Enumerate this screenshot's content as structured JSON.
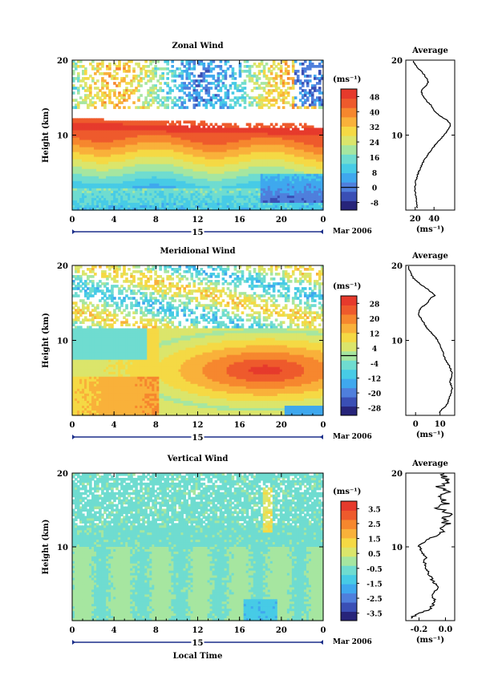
{
  "chart_data": [
    {
      "type": "heatmap",
      "title": "Zonal Wind",
      "ylabel": "Height (km)",
      "ylim": [
        0,
        20
      ],
      "yticks": [
        "10",
        "20"
      ],
      "xticks": [
        "0",
        "4",
        "8",
        "12",
        "16",
        "20",
        "0"
      ],
      "xlim": [
        0,
        24
      ],
      "colorbar": {
        "unit_label": "(ms⁻¹)",
        "ticks": [
          "-8",
          "0",
          "8",
          "16",
          "24",
          "32",
          "40",
          "48"
        ],
        "range": [
          -12,
          52
        ],
        "colors": [
          "#27247a",
          "#3a4fb5",
          "#4f7fdc",
          "#3fa8ee",
          "#47cbe6",
          "#6fdcd0",
          "#a6e6a0",
          "#dbe56b",
          "#f5d944",
          "#f9b13a",
          "#f6872e",
          "#ee5a2c",
          "#e63a2c"
        ]
      },
      "average_panel": {
        "title": "Average",
        "xticks": [
          "20",
          "40"
        ],
        "xlim": [
          10,
          62
        ],
        "ylim": [
          0,
          20
        ],
        "yticks": [
          "10",
          "20"
        ],
        "xlabel": "(ms⁻¹)",
        "profile": [
          [
            22,
            0.5
          ],
          [
            21,
            1.5
          ],
          [
            20,
            2.5
          ],
          [
            20,
            3.5
          ],
          [
            22,
            4.5
          ],
          [
            25,
            5.5
          ],
          [
            29,
            6.5
          ],
          [
            34,
            7.5
          ],
          [
            40,
            8.5
          ],
          [
            47,
            9.5
          ],
          [
            54,
            10.5
          ],
          [
            58,
            11.3
          ],
          [
            54,
            12.0
          ],
          [
            46,
            12.6
          ],
          [
            40,
            13.2
          ],
          [
            37,
            14.0
          ],
          [
            32,
            14.5
          ],
          [
            29,
            15.2
          ],
          [
            26,
            15.8
          ],
          [
            30,
            16.4
          ],
          [
            34,
            17.0
          ],
          [
            32,
            17.6
          ],
          [
            28,
            18.3
          ],
          [
            22,
            19.0
          ],
          [
            18,
            19.8
          ]
        ]
      }
    },
    {
      "type": "heatmap",
      "title": "Meridional Wind",
      "ylabel": "Height (km)",
      "ylim": [
        0,
        20
      ],
      "yticks": [
        "10",
        "20"
      ],
      "xticks": [
        "0",
        "4",
        "8",
        "12",
        "16",
        "20",
        "0"
      ],
      "xlim": [
        0,
        24
      ],
      "colorbar": {
        "unit_label": "(ms⁻¹)",
        "ticks": [
          "-28",
          "-20",
          "-12",
          "-4",
          "4",
          "12",
          "20",
          "28"
        ],
        "range": [
          -32,
          32
        ],
        "colors": [
          "#27247a",
          "#3a4fb5",
          "#4f7fdc",
          "#3fa8ee",
          "#47cbe6",
          "#6fdcd0",
          "#a6e6a0",
          "#dbe56b",
          "#f5d944",
          "#f9b13a",
          "#f6872e",
          "#ee5a2c",
          "#e63a2c"
        ]
      },
      "average_panel": {
        "title": "Average",
        "xticks": [
          "0",
          "10"
        ],
        "xlim": [
          -4,
          16
        ],
        "ylim": [
          0,
          20
        ],
        "yticks": [
          "10",
          "20"
        ],
        "xlabel": "(ms⁻¹)",
        "profile": [
          [
            10,
            0.5
          ],
          [
            13,
            1.5
          ],
          [
            14,
            2.5
          ],
          [
            15,
            3.5
          ],
          [
            14,
            4.5
          ],
          [
            15,
            5.5
          ],
          [
            14,
            6.5
          ],
          [
            12,
            7.5
          ],
          [
            11,
            8.5
          ],
          [
            10,
            9.5
          ],
          [
            8,
            10.5
          ],
          [
            5,
            11.5
          ],
          [
            3,
            12.5
          ],
          [
            1,
            13.5
          ],
          [
            2,
            14.3
          ],
          [
            5,
            15.0
          ],
          [
            6,
            15.6
          ],
          [
            8,
            16.0
          ],
          [
            5,
            16.8
          ],
          [
            2,
            17.5
          ],
          [
            -1,
            18.3
          ],
          [
            -2,
            19.0
          ],
          [
            -3,
            19.8
          ]
        ]
      }
    },
    {
      "type": "heatmap",
      "title": "Vertical Wind",
      "ylabel": "Height (km)",
      "xlabel": "Local Time",
      "ylim": [
        0,
        20
      ],
      "yticks": [
        "10",
        "20"
      ],
      "xticks": [
        "0",
        "4",
        "8",
        "12",
        "16",
        "20",
        "0"
      ],
      "xlim": [
        0,
        24
      ],
      "colorbar": {
        "unit_label": "(ms⁻¹)",
        "ticks": [
          "-3.5",
          "-2.5",
          "-1.5",
          "-0.5",
          "0.5",
          "1.5",
          "2.5",
          "3.5"
        ],
        "range": [
          -4,
          4
        ],
        "colors": [
          "#27247a",
          "#3a4fb5",
          "#4f7fdc",
          "#3fa8ee",
          "#47cbe6",
          "#6fdcd0",
          "#a6e6a0",
          "#dbe56b",
          "#f5d944",
          "#f9b13a",
          "#f6872e",
          "#ee5a2c",
          "#e63a2c"
        ]
      },
      "average_panel": {
        "title": "Average",
        "xticks": [
          "-0.2",
          "0.0"
        ],
        "xlim": [
          -0.3,
          0.07
        ],
        "ylim": [
          0,
          20
        ],
        "yticks": [
          "10",
          "20"
        ],
        "xlabel": "(ms⁻¹)",
        "profile": [
          [
            -0.25,
            0.5
          ],
          [
            -0.2,
            1.0
          ],
          [
            -0.12,
            1.5
          ],
          [
            -0.08,
            2.5
          ],
          [
            -0.1,
            3.5
          ],
          [
            -0.06,
            4.5
          ],
          [
            -0.1,
            5.5
          ],
          [
            -0.13,
            6.5
          ],
          [
            -0.16,
            7.5
          ],
          [
            -0.15,
            8.5
          ],
          [
            -0.18,
            9.5
          ],
          [
            -0.2,
            10.2
          ],
          [
            -0.14,
            11.0
          ],
          [
            -0.06,
            11.5
          ],
          [
            -0.02,
            12.3
          ],
          [
            0.02,
            13.0
          ],
          [
            -0.03,
            13.8
          ],
          [
            0.03,
            14.5
          ],
          [
            -0.05,
            15.2
          ],
          [
            0.01,
            16.0
          ],
          [
            -0.07,
            16.8
          ],
          [
            0.02,
            17.5
          ],
          [
            -0.05,
            18.2
          ],
          [
            0.03,
            19.0
          ],
          [
            -0.04,
            19.8
          ]
        ]
      }
    }
  ],
  "date_label": "Mar 2006",
  "day_label": "15"
}
